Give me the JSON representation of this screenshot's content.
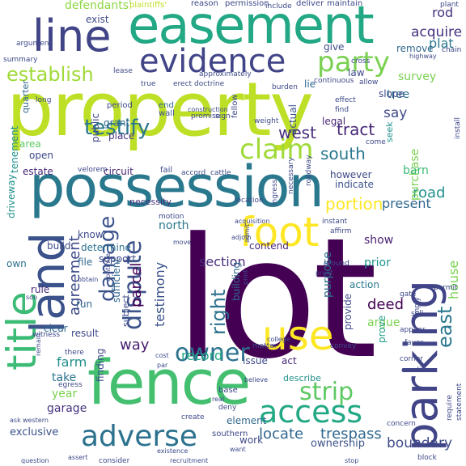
{
  "words": [
    {
      "text": "lot",
      "color": "#440154"
    },
    {
      "text": "property",
      "color": "#bddf26"
    },
    {
      "text": "possession",
      "color": "#2a788e"
    },
    {
      "text": "easement",
      "color": "#22a884"
    },
    {
      "text": "fence",
      "color": "#44bf70"
    },
    {
      "text": "line",
      "color": "#414487"
    },
    {
      "text": "land",
      "color": "#3b528b"
    },
    {
      "text": "title",
      "color": "#3bbb75"
    },
    {
      "text": "foot",
      "color": "#fde725"
    },
    {
      "text": "use",
      "color": "#fde725"
    },
    {
      "text": "parking",
      "color": "#414487"
    },
    {
      "text": "evidence",
      "color": "#414487"
    },
    {
      "text": "adverse",
      "color": "#2c728e"
    },
    {
      "text": "access",
      "color": "#22a884"
    },
    {
      "text": "testify",
      "color": "#2a788e"
    },
    {
      "text": "claim",
      "color": "#a0da39"
    },
    {
      "text": "owner",
      "color": "#2c728e"
    },
    {
      "text": "dispute",
      "color": "#3b528b"
    },
    {
      "text": "party",
      "color": "#7ad151"
    },
    {
      "text": "strip",
      "color": "#5ec962"
    },
    {
      "text": "damage",
      "color": "#3b528b"
    },
    {
      "text": "establish",
      "color": "#a0da39"
    },
    {
      "text": "south",
      "color": "#2a788e"
    },
    {
      "text": "right",
      "color": "#2c728e"
    },
    {
      "text": "east",
      "color": "#2a788e"
    },
    {
      "text": "house",
      "color": "#7ad151"
    },
    {
      "text": "portion",
      "color": "#fde725"
    },
    {
      "text": "boundary",
      "color": "#3e4989"
    },
    {
      "text": "trespass",
      "color": "#31688e"
    },
    {
      "text": "agreement",
      "color": "#3e4989"
    },
    {
      "text": "west",
      "color": "#472d7b"
    },
    {
      "text": "tract",
      "color": "#482878"
    },
    {
      "text": "farm",
      "color": "#21918c"
    },
    {
      "text": "road",
      "color": "#21918c"
    },
    {
      "text": "record",
      "color": "#22a884"
    },
    {
      "text": "locate",
      "color": "#31688e"
    },
    {
      "text": "way",
      "color": "#481f70"
    },
    {
      "text": "section",
      "color": "#472d7b"
    },
    {
      "text": "testimony",
      "color": "#3b528b"
    },
    {
      "text": "parcel",
      "color": "#440154"
    },
    {
      "text": "defendants'",
      "color": "#8fd744"
    },
    {
      "text": "acquire",
      "color": "#46327e"
    },
    {
      "text": "plat",
      "color": "#2a788e"
    },
    {
      "text": "rod",
      "color": "#46327e"
    },
    {
      "text": "survey",
      "color": "#7ad151"
    },
    {
      "text": "say",
      "color": "#3e4989"
    },
    {
      "text": "tree",
      "color": "#2c728e"
    },
    {
      "text": "purchase",
      "color": "#7ad151"
    },
    {
      "text": "barn",
      "color": "#3bbb75"
    },
    {
      "text": "present",
      "color": "#31688e"
    },
    {
      "text": "north",
      "color": "#2a788e"
    },
    {
      "text": "show",
      "color": "#481f70"
    },
    {
      "text": "prior",
      "color": "#21918c"
    },
    {
      "text": "deed",
      "color": "#440154"
    },
    {
      "text": "argue",
      "color": "#7ad151"
    },
    {
      "text": "action",
      "color": "#2a788e"
    },
    {
      "text": "purpose",
      "color": "#2c728e"
    },
    {
      "text": "provide",
      "color": "#3e4989"
    },
    {
      "text": "prove",
      "color": "#1f9e89"
    },
    {
      "text": "issue",
      "color": "#3e4989"
    },
    {
      "text": "act",
      "color": "#482878"
    },
    {
      "text": "describe",
      "color": "#21918c"
    },
    {
      "text": "building",
      "color": "#31688e"
    },
    {
      "text": "enter",
      "color": "#440154"
    },
    {
      "text": "contend",
      "color": "#482878"
    },
    {
      "text": "determine",
      "color": "#2c728e"
    },
    {
      "text": "grant",
      "color": "#31688e"
    },
    {
      "text": "place",
      "color": "#46327e"
    },
    {
      "text": "public",
      "color": "#3e4989"
    },
    {
      "text": "legal",
      "color": "#482878"
    },
    {
      "text": "actual",
      "color": "#3b528b"
    },
    {
      "text": "however",
      "color": "#3e4989"
    },
    {
      "text": "indicate",
      "color": "#3b528b"
    },
    {
      "text": "estate",
      "color": "#482878"
    },
    {
      "text": "circuit",
      "color": "#482878"
    },
    {
      "text": "open",
      "color": "#3e4989"
    },
    {
      "text": "area",
      "color": "#5ec962"
    },
    {
      "text": "fail",
      "color": "#3e4989"
    },
    {
      "text": "driveway",
      "color": "#21918c"
    },
    {
      "text": "own",
      "color": "#2c728e"
    },
    {
      "text": "run",
      "color": "#31688e"
    },
    {
      "text": "result",
      "color": "#3e4989"
    },
    {
      "text": "clear",
      "color": "#31688e"
    },
    {
      "text": "rule",
      "color": "#472d7b"
    },
    {
      "text": "build",
      "color": "#3e4989"
    },
    {
      "text": "file",
      "color": "#31688e"
    },
    {
      "text": "know",
      "color": "#3e4989"
    },
    {
      "text": "take",
      "color": "#2c728e"
    },
    {
      "text": "year",
      "color": "#7ad151"
    },
    {
      "text": "garage",
      "color": "#46327e"
    },
    {
      "text": "exclusive",
      "color": "#3b528b"
    },
    {
      "text": "finding",
      "color": "#3e4989"
    },
    {
      "text": "element",
      "color": "#31688e"
    },
    {
      "text": "work",
      "color": "#3e4989"
    },
    {
      "text": "ownership",
      "color": "#3b528b"
    },
    {
      "text": "exist",
      "color": "#3e4989"
    },
    {
      "text": "remove",
      "color": "#31688e"
    },
    {
      "text": "slope",
      "color": "#3e4989"
    },
    {
      "text": "law",
      "color": "#3e4989"
    },
    {
      "text": "lie",
      "color": "#31688e"
    },
    {
      "text": "reason",
      "color": "#3e4989"
    },
    {
      "text": "give",
      "color": "#3e4989"
    },
    {
      "text": "seek",
      "color": "#21918c"
    },
    {
      "text": "fellow",
      "color": "#3e4989"
    },
    {
      "text": "period",
      "color": "#3e4989"
    },
    {
      "text": "end",
      "color": "#31688e"
    },
    {
      "text": "wall",
      "color": "#3b528b"
    },
    {
      "text": "tenement",
      "color": "#21918c"
    },
    {
      "text": "necessity",
      "color": "#46327e"
    },
    {
      "text": "support",
      "color": "#3e4989"
    },
    {
      "text": "sufficient",
      "color": "#31688e"
    },
    {
      "text": "subject",
      "color": "#3e4989"
    },
    {
      "text": "base",
      "color": "#3e4989"
    },
    {
      "text": "quarter",
      "color": "#31688e"
    },
    {
      "text": "southern",
      "color": "#3e4989"
    },
    {
      "text": "permission",
      "color": "#3e4989"
    },
    {
      "text": "deliver",
      "color": "#3e4989"
    },
    {
      "text": "maintain",
      "color": "#3e4989"
    },
    {
      "text": "include",
      "color": "#3e4989"
    },
    {
      "text": "plaintiffs'",
      "color": "#bddf26"
    },
    {
      "text": "argument",
      "color": "#3e4989"
    },
    {
      "text": "approximately",
      "color": "#3e4989"
    },
    {
      "text": "lease",
      "color": "#3e4989"
    },
    {
      "text": "summary",
      "color": "#3e4989"
    },
    {
      "text": "cross",
      "color": "#3e4989"
    },
    {
      "text": "allow",
      "color": "#3e4989"
    },
    {
      "text": "burden",
      "color": "#3e4989"
    },
    {
      "text": "doctrine",
      "color": "#3e4989"
    },
    {
      "text": "continuous",
      "color": "#3e4989"
    },
    {
      "text": "true",
      "color": "#3e4989"
    },
    {
      "text": "erect",
      "color": "#3e4989"
    },
    {
      "text": "promise",
      "color": "#3e4989"
    },
    {
      "text": "sign",
      "color": "#3e4989"
    },
    {
      "text": "weight",
      "color": "#3e4989"
    },
    {
      "text": "effect",
      "color": "#3e4989"
    },
    {
      "text": "find",
      "color": "#3e4989"
    },
    {
      "text": "come",
      "color": "#3e4989"
    },
    {
      "text": "velorem",
      "color": "#3e4989"
    },
    {
      "text": "accord",
      "color": "#3e4989"
    },
    {
      "text": "cattle",
      "color": "#3e4989"
    },
    {
      "text": "location",
      "color": "#3e4989"
    },
    {
      "text": "motion",
      "color": "#3e4989"
    },
    {
      "text": "instant",
      "color": "#3e4989"
    },
    {
      "text": "affirm",
      "color": "#3e4989"
    },
    {
      "text": "necessary",
      "color": "#3e4989"
    },
    {
      "text": "ingress",
      "color": "#3e4989"
    },
    {
      "text": "roadway",
      "color": "#3e4989"
    },
    {
      "text": "install",
      "color": "#3e4989"
    },
    {
      "text": "highway",
      "color": "#3e4989"
    },
    {
      "text": "chain",
      "color": "#3e4989"
    },
    {
      "text": "plant",
      "color": "#3e4989"
    },
    {
      "text": "corner",
      "color": "#3e4989"
    },
    {
      "text": "gate",
      "color": "#3e4989"
    },
    {
      "text": "appear",
      "color": "#3e4989"
    },
    {
      "text": "permit",
      "color": "#3e4989"
    },
    {
      "text": "imply",
      "color": "#3e4989"
    },
    {
      "text": "sell",
      "color": "#3e4989"
    },
    {
      "text": "favor",
      "color": "#3e4989"
    },
    {
      "text": "condition",
      "color": "#3e4989"
    },
    {
      "text": "statement",
      "color": "#3e4989"
    },
    {
      "text": "require",
      "color": "#3e4989"
    },
    {
      "text": "concern",
      "color": "#3e4989"
    },
    {
      "text": "block",
      "color": "#3e4989"
    },
    {
      "text": "admit",
      "color": "#3e4989"
    },
    {
      "text": "acquisition",
      "color": "#3e4989"
    },
    {
      "text": "adjoin",
      "color": "#3e4989"
    },
    {
      "text": "move",
      "color": "#3e4989"
    },
    {
      "text": "print",
      "color": "#3e4989"
    },
    {
      "text": "proof",
      "color": "#3e4989"
    },
    {
      "text": "ground",
      "color": "#3e4989"
    },
    {
      "text": "convey",
      "color": "#3e4989"
    },
    {
      "text": "matter",
      "color": "#3e4989"
    },
    {
      "text": "college",
      "color": "#3e4989"
    },
    {
      "text": "there",
      "color": "#3e4989"
    },
    {
      "text": "witness",
      "color": "#3e4989"
    },
    {
      "text": "son",
      "color": "#3e4989"
    },
    {
      "text": "remain",
      "color": "#3e4989"
    },
    {
      "text": "obtain",
      "color": "#3e4989"
    },
    {
      "text": "continue",
      "color": "#3e4989"
    },
    {
      "text": "egress",
      "color": "#3e4989"
    },
    {
      "text": "cost",
      "color": "#3e4989"
    },
    {
      "text": "par",
      "color": "#3e4989"
    },
    {
      "text": "real",
      "color": "#3e4989"
    },
    {
      "text": "deny",
      "color": "#3e4989"
    },
    {
      "text": "believe",
      "color": "#3e4989"
    },
    {
      "text": "create",
      "color": "#3e4989"
    },
    {
      "text": "existence",
      "color": "#3e4989"
    },
    {
      "text": "consider",
      "color": "#3e4989"
    },
    {
      "text": "want",
      "color": "#3e4989"
    },
    {
      "text": "recruitment",
      "color": "#3e4989"
    },
    {
      "text": "ask",
      "color": "#3e4989"
    },
    {
      "text": "western",
      "color": "#3e4989"
    },
    {
      "text": "question",
      "color": "#3e4989"
    },
    {
      "text": "assert",
      "color": "#3e4989"
    },
    {
      "text": "long",
      "color": "#3e4989"
    },
    {
      "text": "construction",
      "color": "#3e4989"
    },
    {
      "text": "stop",
      "color": "#3e4989"
    }
  ]
}
